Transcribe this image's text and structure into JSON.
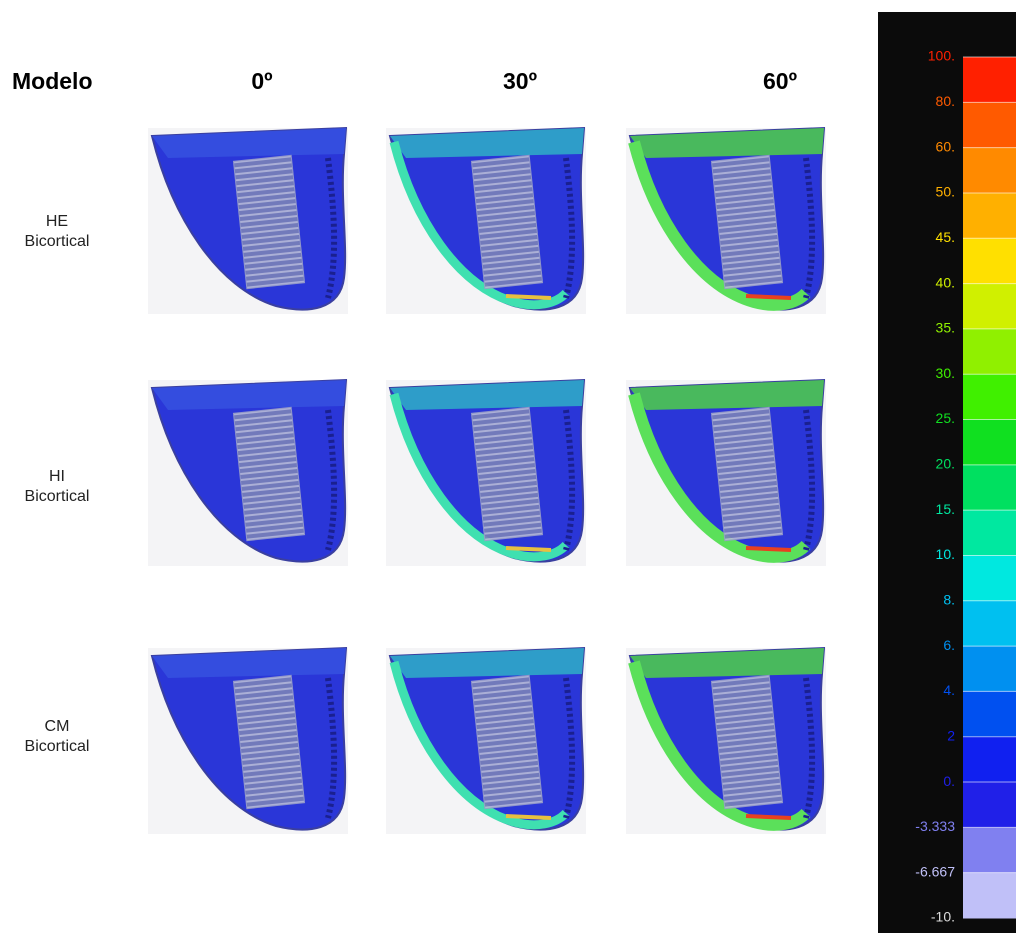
{
  "header": {
    "corner": "Modelo",
    "columns": [
      "0º",
      "30º",
      "60º"
    ]
  },
  "rows": [
    {
      "label": [
        "HE",
        "Bicortical"
      ]
    },
    {
      "label": [
        "HI",
        "Bicortical"
      ]
    },
    {
      "label": [
        "CM",
        "Bicortical"
      ]
    }
  ],
  "legend": {
    "labels": [
      "100.",
      "80.",
      "60.",
      "50.",
      "45.",
      "40.",
      "35.",
      "30.",
      "25.",
      "20.",
      "15.",
      "10.",
      "8.",
      "6.",
      "4.",
      "2",
      "0.",
      "-3.333",
      "-6.667",
      "-10."
    ]
  }
}
